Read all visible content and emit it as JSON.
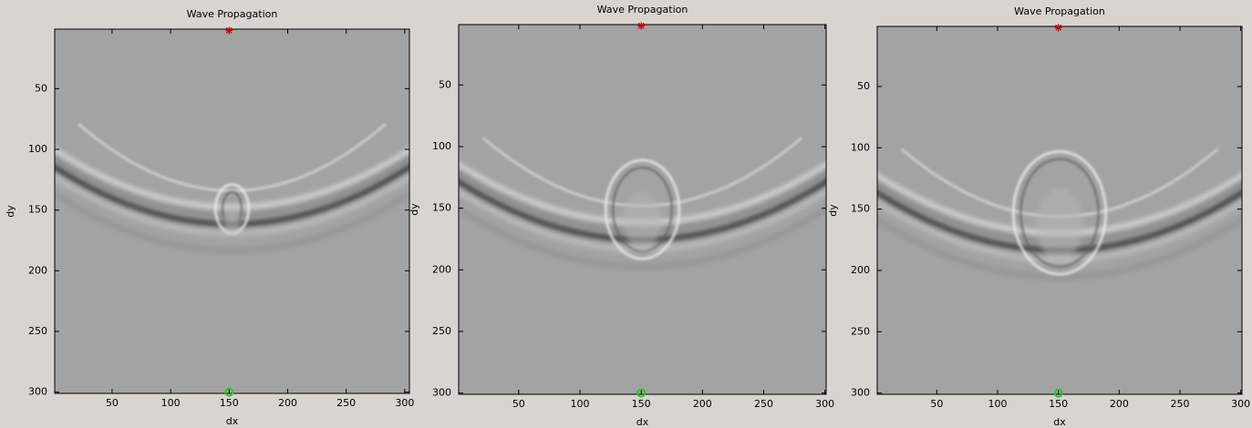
{
  "chart_data": [
    {
      "type": "image",
      "title": "Wave Propagation",
      "x_label": "dx",
      "y_label": "dy",
      "xlim": [
        1,
        304
      ],
      "ylim": [
        1,
        301
      ],
      "y_reversed": true,
      "xticks": [
        50,
        100,
        150,
        200,
        250,
        300
      ],
      "yticks": [
        50,
        100,
        150,
        200,
        250,
        300
      ],
      "points": [
        {
          "x": 150,
          "y": 2,
          "color": "#d00000",
          "marker": "star"
        },
        {
          "x": 150,
          "y": 300,
          "color": "#22cc22",
          "marker": "circle"
        }
      ]
    },
    {
      "type": "image",
      "title": "Wave Propagation",
      "x_label": "dx",
      "y_label": "dy",
      "xlim": [
        1,
        301
      ],
      "ylim": [
        1,
        301
      ],
      "y_reversed": true,
      "xticks": [
        50,
        100,
        150,
        200,
        250,
        300
      ],
      "yticks": [
        50,
        100,
        150,
        200,
        250,
        300
      ],
      "points": [
        {
          "x": 150,
          "y": 2,
          "color": "#d00000",
          "marker": "star"
        },
        {
          "x": 150,
          "y": 300,
          "color": "#22cc22",
          "marker": "circle"
        }
      ]
    },
    {
      "type": "image",
      "title": "Wave Propagation",
      "x_label": "dx",
      "y_label": "dy",
      "xlim": [
        1,
        301
      ],
      "ylim": [
        1,
        301
      ],
      "y_reversed": true,
      "xticks": [
        50,
        100,
        150,
        200,
        250,
        300
      ],
      "yticks": [
        50,
        100,
        150,
        200,
        250,
        300
      ],
      "points": [
        {
          "x": 150,
          "y": 2,
          "color": "#d00000",
          "marker": "star"
        },
        {
          "x": 150,
          "y": 300,
          "color": "#22cc22",
          "marker": "circle"
        }
      ]
    }
  ]
}
